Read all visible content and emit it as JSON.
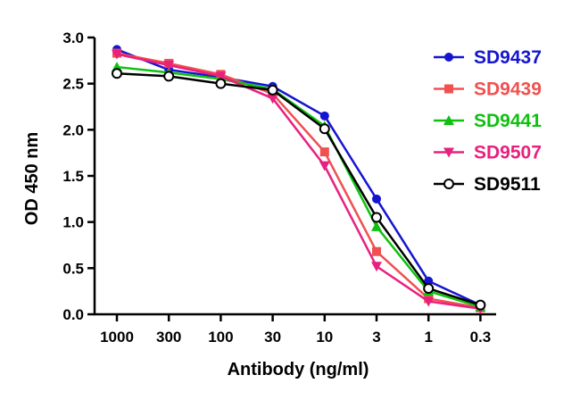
{
  "chart_data": {
    "type": "line",
    "xlabel": "Antibody (ng/ml)",
    "ylabel": "OD 450 nm",
    "categories": [
      "1000",
      "300",
      "100",
      "30",
      "10",
      "3",
      "1",
      "0.3"
    ],
    "yticks": [
      "0.0",
      "0.5",
      "1.0",
      "1.5",
      "2.0",
      "2.5",
      "3.0"
    ],
    "ylim": [
      0,
      3.0
    ],
    "grid": false,
    "legend_position": "top-right",
    "series": [
      {
        "name": "SD9437",
        "color": "#1515d0",
        "marker": "circle",
        "values": [
          2.87,
          2.65,
          2.57,
          2.47,
          2.15,
          1.25,
          0.36,
          0.1
        ]
      },
      {
        "name": "SD9439",
        "color": "#f05050",
        "marker": "square",
        "values": [
          2.83,
          2.72,
          2.6,
          2.39,
          1.76,
          0.68,
          0.17,
          0.07
        ]
      },
      {
        "name": "SD9441",
        "color": "#10c010",
        "marker": "triangle-up",
        "values": [
          2.68,
          2.62,
          2.55,
          2.44,
          2.04,
          0.95,
          0.25,
          0.08
        ]
      },
      {
        "name": "SD9507",
        "color": "#e8207e",
        "marker": "triangle-down",
        "values": [
          2.82,
          2.7,
          2.58,
          2.34,
          1.61,
          0.52,
          0.14,
          0.06
        ]
      },
      {
        "name": "SD9511",
        "color": "#000000",
        "marker": "open-circle",
        "values": [
          2.61,
          2.58,
          2.5,
          2.43,
          2.01,
          1.05,
          0.28,
          0.1
        ]
      }
    ]
  }
}
